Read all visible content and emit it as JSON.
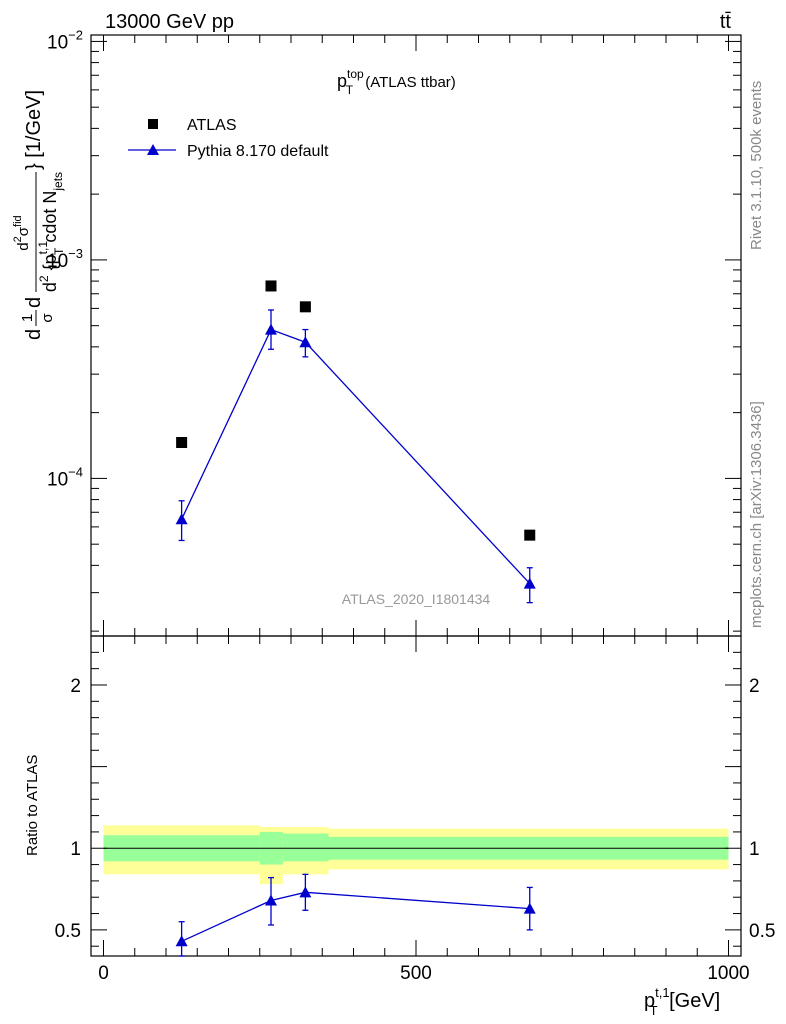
{
  "header": {
    "left": "13000 GeV pp",
    "right": "tt̄"
  },
  "side_labels": {
    "rivet": "Rivet 3.1.10,  500k events",
    "mcplots": "mcplots.cern.ch [arXiv:1306.3436]"
  },
  "plot_title": {
    "main": "p",
    "sup": "top",
    "sub": "T",
    "suffix": " (ATLAS ttbar)"
  },
  "watermark": "ATLAS_2020_I1801434",
  "legend": {
    "placement": "top-left",
    "items": [
      {
        "label": "ATLAS"
      },
      {
        "label": "Pythia 8.170 default"
      }
    ]
  },
  "colors": {
    "data": "#000000",
    "mc": "#0000cc",
    "band_inner": "#99ff99",
    "band_outer": "#ffff99"
  },
  "ylabel_main": {
    "part1": "d",
    "frac1_num": "1",
    "frac1_den": "σ",
    "part2": "d",
    "frac2_num_a": "d",
    "frac2_num_sup": "2",
    "frac2_num_b": "σ",
    "frac2_num_sup2": "fid",
    "frac2_den_a": "d",
    "frac2_den_sup": "2",
    "frac2_den_b": " {p",
    "frac2_den_sup2": "t,1",
    "frac2_den_sub": "T",
    "frac2_den_c": " cdot N",
    "frac2_den_sub2": "jets",
    "tail": "} [1/GeV]"
  },
  "ylabel_ratio": "Ratio to ATLAS",
  "xlabel": {
    "main": "p",
    "sup": "t,1",
    "sub": "T",
    "unit": " [GeV]"
  },
  "chart_data": [
    {
      "type": "scatter",
      "panel": "main",
      "scale": "log",
      "ylim": [
        1.9e-05,
        0.0107
      ],
      "xlim": [
        -20,
        1020
      ],
      "ytick_labels": [
        {
          "value": 0.01,
          "base": "10",
          "exp": "−2"
        },
        {
          "value": 0.001,
          "base": "10",
          "exp": "−3"
        },
        {
          "value": 0.0001,
          "base": "10",
          "exp": "−4"
        }
      ],
      "series": [
        {
          "name": "ATLAS",
          "marker": "square",
          "x": [
            125,
            268,
            323,
            682
          ],
          "y": [
            0.000146,
            0.00076,
            0.00061,
            5.5e-05
          ]
        },
        {
          "name": "Pythia 8.170 default",
          "marker": "triangle",
          "line": true,
          "x": [
            125,
            268,
            323,
            682
          ],
          "y": [
            6.5e-05,
            0.00048,
            0.00042,
            3.3e-05
          ],
          "yerr_low": [
            5.2e-05,
            0.00039,
            0.00036,
            2.7e-05
          ],
          "yerr_high": [
            7.9e-05,
            0.00059,
            0.00048,
            3.9e-05
          ]
        }
      ]
    },
    {
      "type": "line",
      "panel": "ratio",
      "ylim": [
        0.34,
        2.3
      ],
      "xlim": [
        -20,
        1020
      ],
      "yticks": [
        0.5,
        1,
        2
      ],
      "ytick_labels": [
        "0.5",
        "1",
        "2"
      ],
      "xticks": [
        0,
        500,
        1000
      ],
      "xtick_labels": [
        "0",
        "500",
        "1000"
      ],
      "reference_line": 1,
      "bands": [
        {
          "x_low": 0,
          "x_high": 250,
          "inner": [
            0.92,
            1.08
          ],
          "outer": [
            0.84,
            1.14
          ]
        },
        {
          "x_low": 250,
          "x_high": 287,
          "inner": [
            0.9,
            1.1
          ],
          "outer": [
            0.78,
            1.13
          ]
        },
        {
          "x_low": 287,
          "x_high": 360,
          "inner": [
            0.92,
            1.09
          ],
          "outer": [
            0.84,
            1.13
          ]
        },
        {
          "x_low": 360,
          "x_high": 1000,
          "inner": [
            0.93,
            1.07
          ],
          "outer": [
            0.87,
            1.12
          ]
        }
      ],
      "series": [
        {
          "name": "Pythia 8.170 default",
          "marker": "triangle",
          "x": [
            125,
            268,
            323,
            682
          ],
          "y": [
            0.43,
            0.68,
            0.73,
            0.63
          ],
          "yerr_low": [
            0.34,
            0.53,
            0.62,
            0.5
          ],
          "yerr_high": [
            0.55,
            0.82,
            0.84,
            0.76
          ]
        }
      ]
    }
  ]
}
